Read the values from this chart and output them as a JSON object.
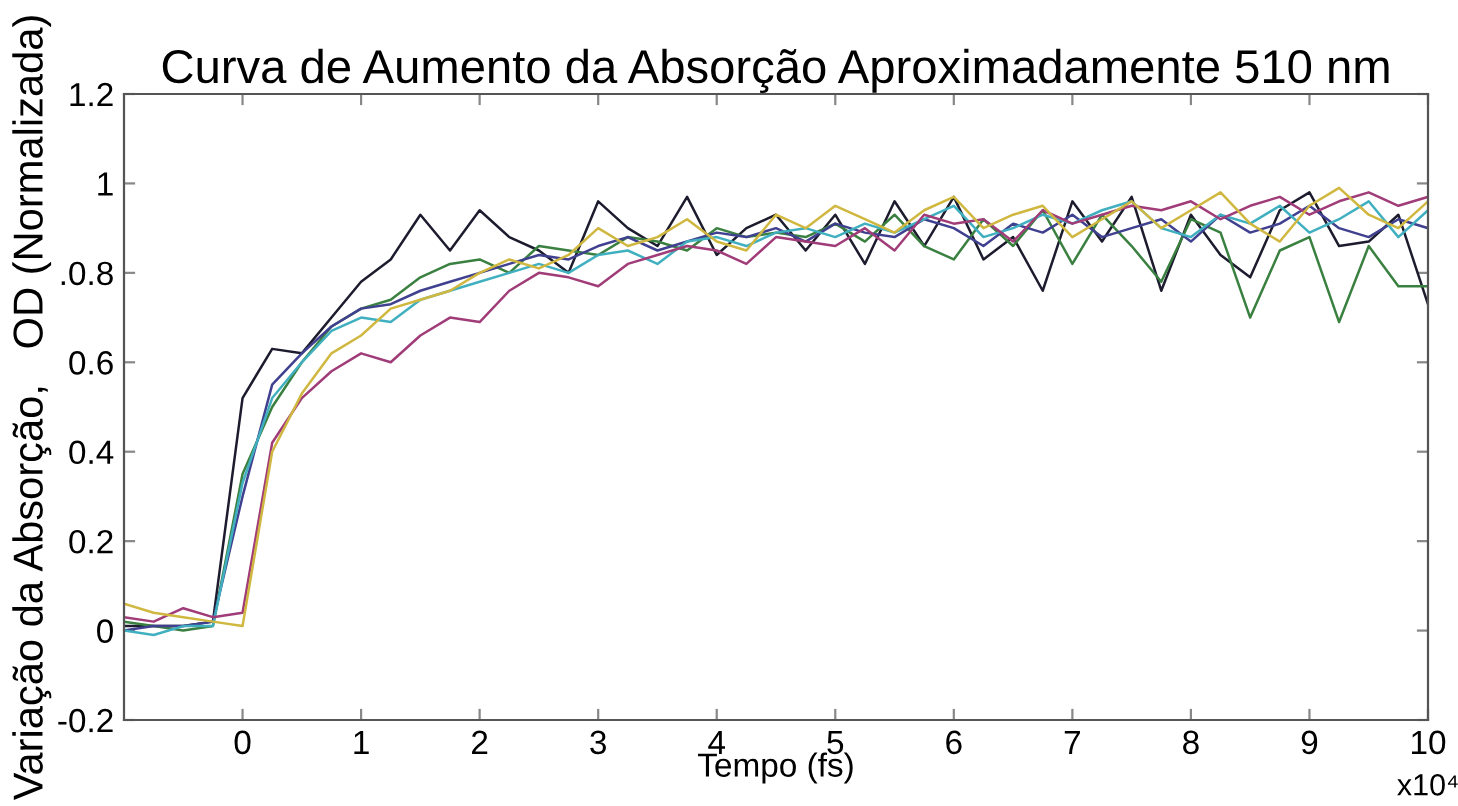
{
  "chart_data": {
    "type": "line",
    "title": "Curva de Aumento da Absorção Aproximadamente 510 nm",
    "xlabel": "Tempo (fs)",
    "ylabel": "Variação da Absorção,   OD (Normalizada)",
    "annotations": [
      "x10⁴"
    ],
    "x": [
      -1,
      -0.75,
      -0.5,
      -0.25,
      0,
      0.25,
      0.5,
      0.75,
      1,
      1.25,
      1.5,
      1.75,
      2,
      2.25,
      2.5,
      2.75,
      3,
      3.25,
      3.5,
      3.75,
      4,
      4.25,
      4.5,
      4.75,
      5,
      5.25,
      5.5,
      5.75,
      6,
      6.25,
      6.5,
      6.75,
      7,
      7.25,
      7.5,
      7.75,
      8,
      8.25,
      8.5,
      8.75,
      9,
      9.25,
      9.5,
      9.75,
      10
    ],
    "series": [
      {
        "color": "#1c1c2e",
        "values": [
          0.01,
          0.01,
          0.01,
          0.02,
          0.52,
          0.63,
          0.62,
          0.7,
          0.78,
          0.83,
          0.93,
          0.85,
          0.94,
          0.88,
          0.85,
          0.8,
          0.96,
          0.9,
          0.86,
          0.97,
          0.84,
          0.9,
          0.93,
          0.85,
          0.93,
          0.82,
          0.96,
          0.86,
          0.97,
          0.83,
          0.88,
          0.76,
          0.96,
          0.87,
          0.97,
          0.76,
          0.93,
          0.84,
          0.79,
          0.94,
          0.98,
          0.86,
          0.87,
          0.93,
          0.73
        ]
      },
      {
        "color": "#3a8040",
        "values": [
          0.02,
          0.01,
          0.0,
          0.01,
          0.35,
          0.5,
          0.6,
          0.68,
          0.72,
          0.74,
          0.79,
          0.82,
          0.83,
          0.8,
          0.86,
          0.85,
          0.84,
          0.88,
          0.87,
          0.85,
          0.9,
          0.88,
          0.89,
          0.88,
          0.91,
          0.87,
          0.93,
          0.86,
          0.83,
          0.92,
          0.86,
          0.94,
          0.82,
          0.93,
          0.86,
          0.78,
          0.92,
          0.89,
          0.7,
          0.85,
          0.88,
          0.69,
          0.86,
          0.77,
          0.77
        ]
      },
      {
        "color": "#404090",
        "values": [
          0.0,
          0.01,
          0.01,
          0.02,
          0.3,
          0.55,
          0.62,
          0.68,
          0.72,
          0.73,
          0.76,
          0.78,
          0.8,
          0.82,
          0.84,
          0.83,
          0.86,
          0.88,
          0.85,
          0.87,
          0.89,
          0.88,
          0.9,
          0.87,
          0.91,
          0.89,
          0.88,
          0.92,
          0.9,
          0.86,
          0.91,
          0.89,
          0.93,
          0.88,
          0.9,
          0.92,
          0.87,
          0.93,
          0.89,
          0.91,
          0.95,
          0.9,
          0.88,
          0.92,
          0.9
        ]
      },
      {
        "color": "#40b0c0",
        "values": [
          0.0,
          -0.01,
          0.01,
          0.01,
          0.33,
          0.52,
          0.6,
          0.67,
          0.7,
          0.69,
          0.74,
          0.76,
          0.78,
          0.8,
          0.82,
          0.8,
          0.84,
          0.85,
          0.82,
          0.87,
          0.88,
          0.86,
          0.89,
          0.9,
          0.88,
          0.91,
          0.89,
          0.92,
          0.95,
          0.88,
          0.9,
          0.93,
          0.91,
          0.94,
          0.96,
          0.9,
          0.88,
          0.93,
          0.91,
          0.95,
          0.89,
          0.92,
          0.96,
          0.88,
          0.94
        ]
      },
      {
        "color": "#a03c78",
        "values": [
          0.03,
          0.02,
          0.05,
          0.03,
          0.04,
          0.42,
          0.52,
          0.58,
          0.62,
          0.6,
          0.66,
          0.7,
          0.69,
          0.76,
          0.8,
          0.79,
          0.77,
          0.82,
          0.84,
          0.86,
          0.85,
          0.82,
          0.88,
          0.87,
          0.86,
          0.9,
          0.85,
          0.93,
          0.91,
          0.92,
          0.87,
          0.94,
          0.91,
          0.93,
          0.95,
          0.94,
          0.96,
          0.92,
          0.95,
          0.97,
          0.93,
          0.96,
          0.98,
          0.95,
          0.97
        ]
      },
      {
        "color": "#d0b840",
        "values": [
          0.06,
          0.04,
          0.03,
          0.02,
          0.01,
          0.4,
          0.53,
          0.62,
          0.66,
          0.72,
          0.74,
          0.76,
          0.8,
          0.83,
          0.81,
          0.84,
          0.9,
          0.86,
          0.88,
          0.92,
          0.87,
          0.85,
          0.93,
          0.9,
          0.95,
          0.92,
          0.89,
          0.94,
          0.97,
          0.9,
          0.93,
          0.95,
          0.88,
          0.92,
          0.96,
          0.9,
          0.94,
          0.98,
          0.91,
          0.87,
          0.95,
          0.99,
          0.93,
          0.9,
          0.96
        ]
      }
    ],
    "xlim": [
      -1,
      10
    ],
    "xticks": [
      0,
      1,
      2,
      3,
      4,
      5,
      6,
      7,
      8,
      9,
      10
    ],
    "ylim": [
      -0.2,
      1.2
    ],
    "yticks": [
      -0.2,
      0,
      0.2,
      0.4,
      0.6,
      {
        "value": 0.8,
        "label": ".0.8"
      },
      1,
      1.2
    ],
    "grid": false,
    "legend": false,
    "marker": "none",
    "line_style": "solid"
  }
}
